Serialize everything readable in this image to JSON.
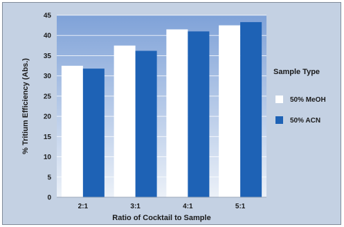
{
  "chart_data": {
    "type": "bar",
    "title": "",
    "xlabel": "Ratio of Cocktail to Sample",
    "ylabel": "% Tritium Efficiency (Abs.)",
    "categories": [
      "2:1",
      "3:1",
      "4:1",
      "5:1"
    ],
    "ylim": [
      0,
      45
    ],
    "yticks": [
      0,
      5,
      10,
      15,
      20,
      25,
      30,
      35,
      40,
      45
    ],
    "grid": true,
    "legend": {
      "title": "Sample Type",
      "placement": "right"
    },
    "series": [
      {
        "name": "50% MeOH",
        "values": [
          32.5,
          37.5,
          41.5,
          42.5
        ],
        "color": "#ffffff"
      },
      {
        "name": "50% ACN",
        "values": [
          31.8,
          36.2,
          41.0,
          43.3
        ],
        "color": "#1e62b5"
      }
    ]
  },
  "colors": {
    "frame_background": "#c4d1e3",
    "plot_background_top": "#7fa2d8",
    "plot_background_bottom": "#ecf1f8",
    "gridline": "#ffffff"
  }
}
